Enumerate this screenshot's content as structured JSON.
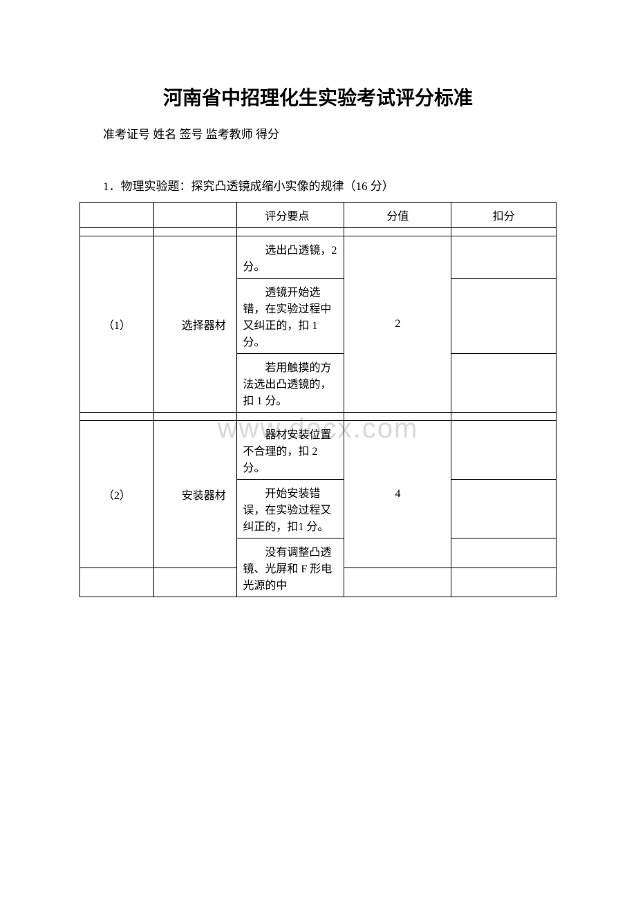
{
  "title": "河南省中招理化生实验考试评分标准",
  "header_line": "准考证号 姓名 签号 监考教师 得分",
  "section_title": "1．物理实验题：探究凸透镜成缩小实像的规律（16 分）",
  "watermark": "www.docx.com",
  "table": {
    "header": {
      "col3": "评分要点",
      "col4": "分值",
      "col5": "扣分"
    },
    "groups": [
      {
        "num": "（1）",
        "step": "选择器材",
        "score": "2",
        "details": [
          "选出凸透镜，2 分。",
          "透镜开始选错，在实验过程中又纠正的，扣 1 分。",
          "若用触摸的方法选出凸透镜的，扣 1 分。"
        ]
      },
      {
        "num": "（2）",
        "step": "安装器材",
        "score": "4",
        "details": [
          "器材安装位置不合理的，扣 2分。",
          "开始安装错误，在实验过程又纠正的，扣1 分。",
          "没有调整凸透镜、光屏和 F 形电光源的中"
        ]
      }
    ]
  }
}
